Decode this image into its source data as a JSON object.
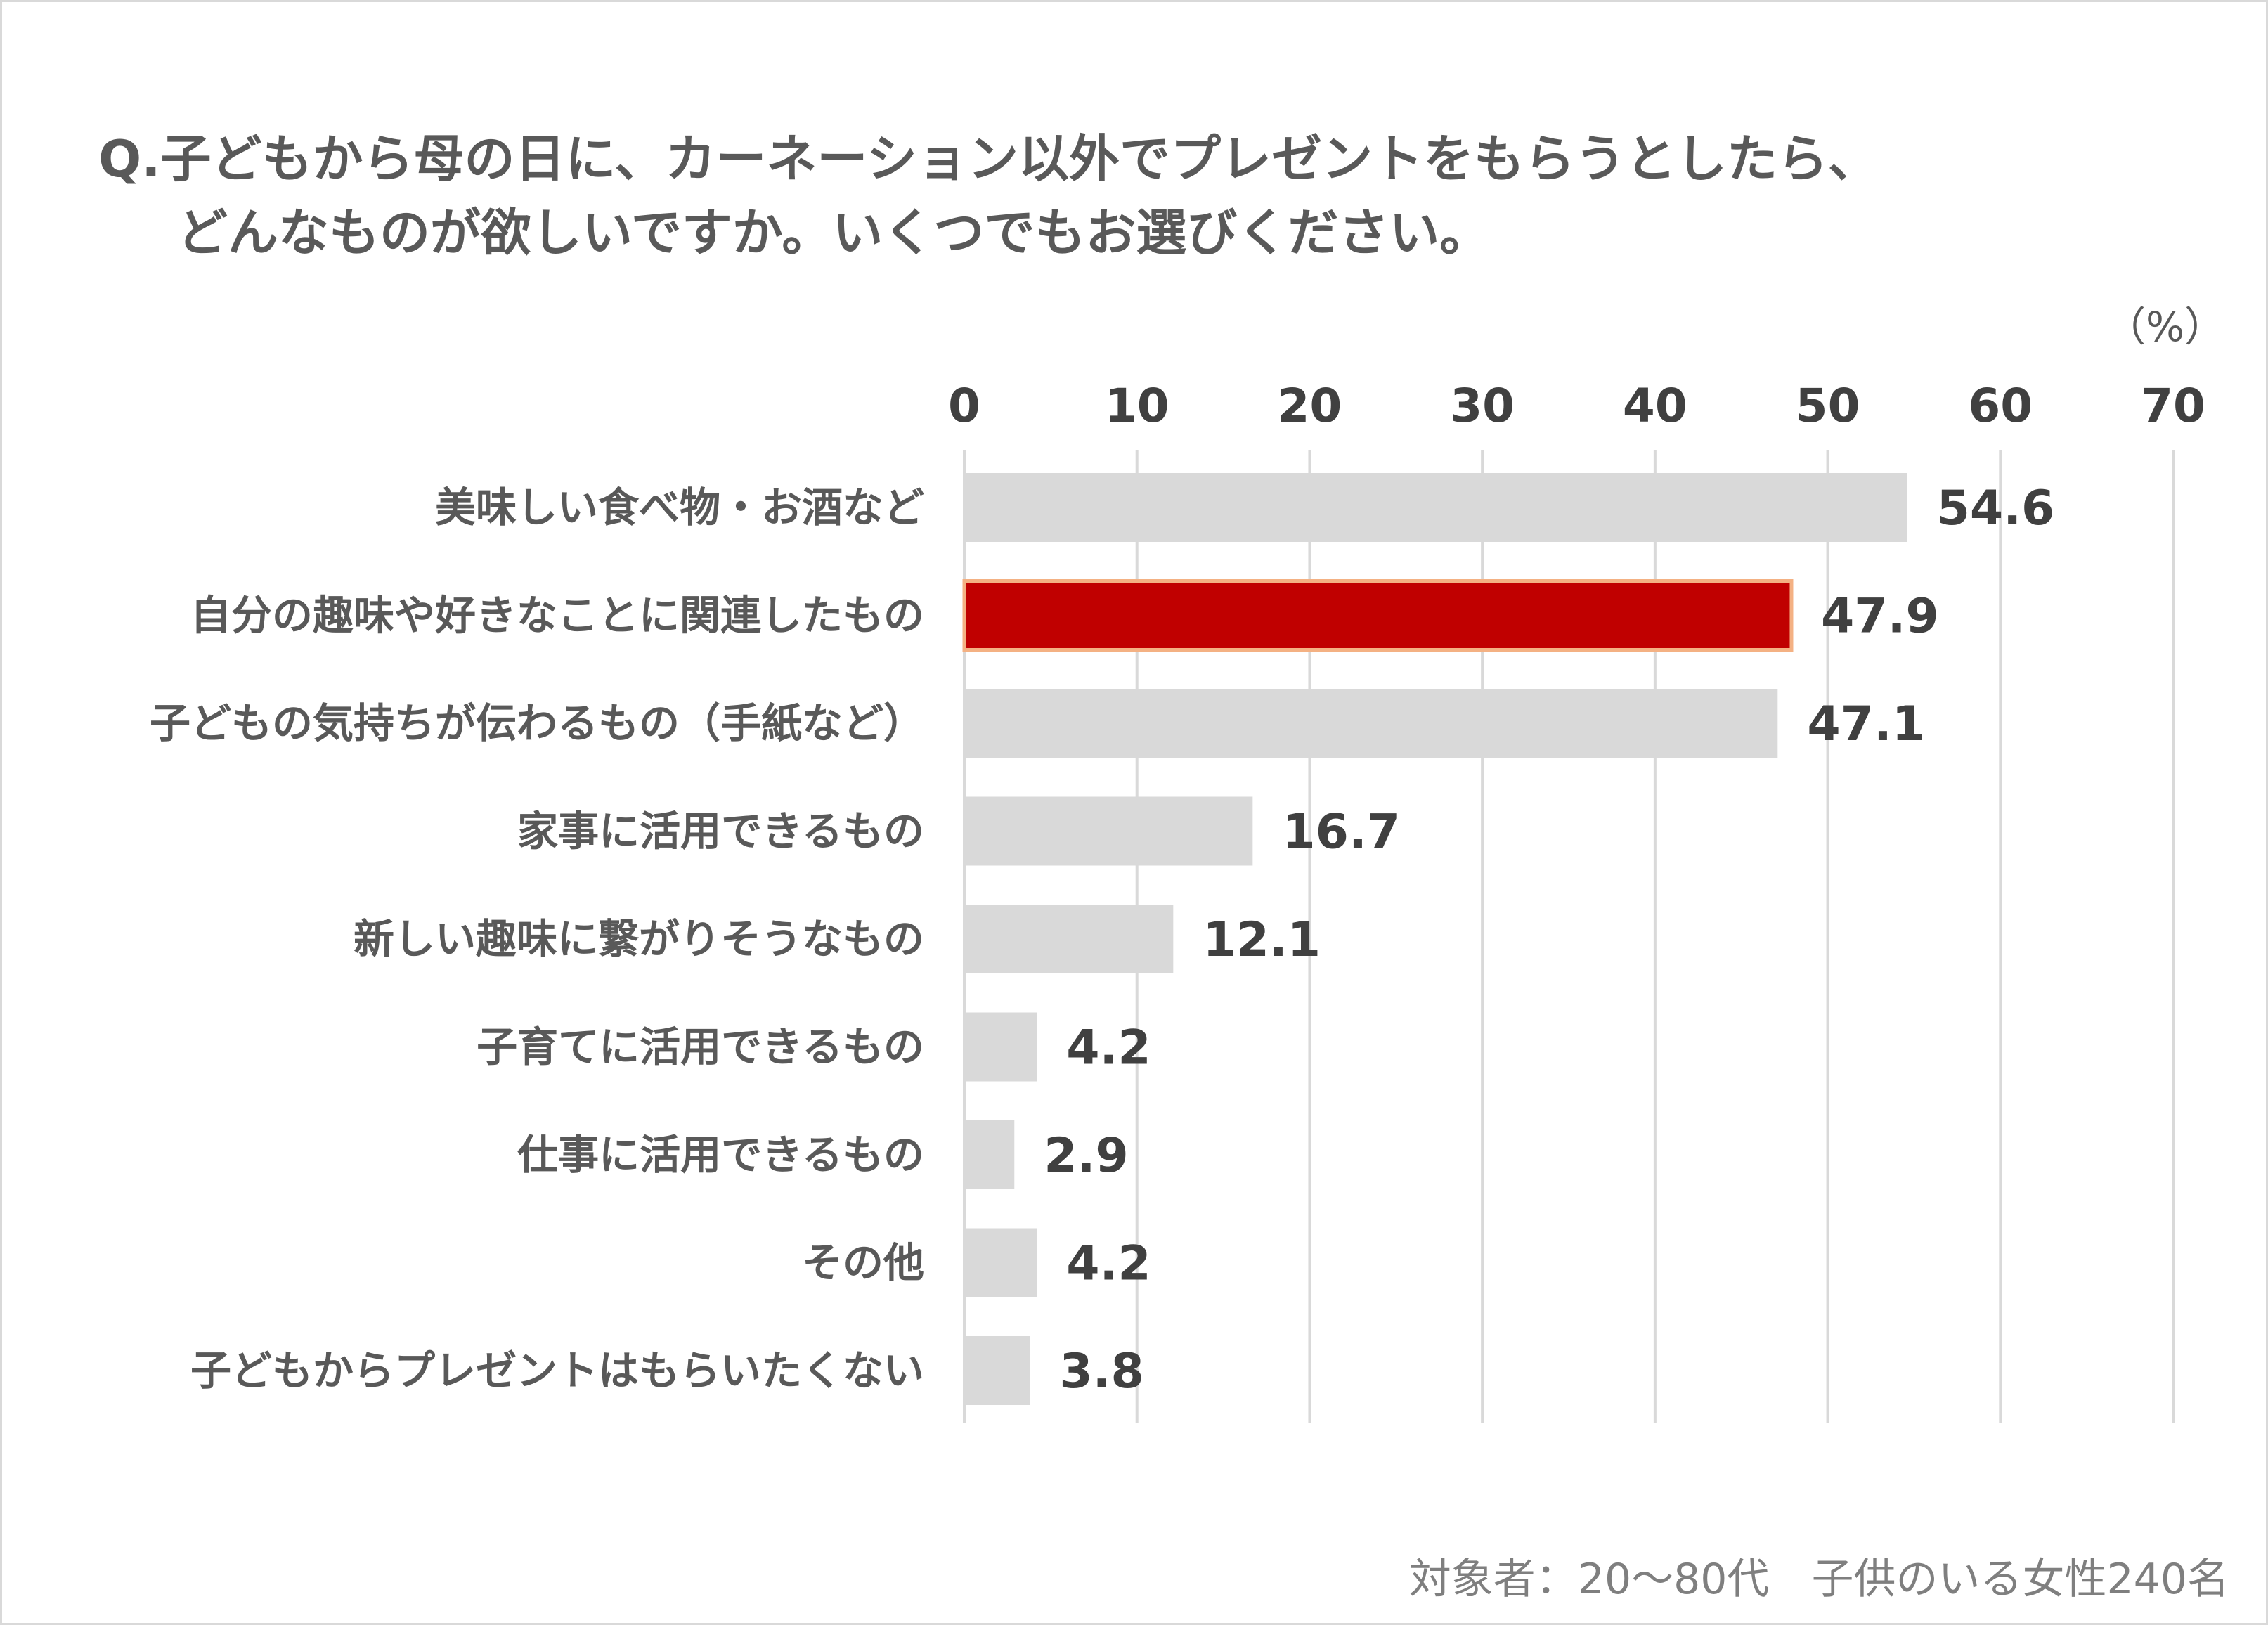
{
  "chart_data": {
    "type": "bar",
    "orientation": "horizontal",
    "title_line1": "Q.子どもから母の日に、カーネーション以外でプレゼントをもらうとしたら、",
    "title_line2": "どんなものが欲しいですか。いくつでもお選びください。",
    "unit": "（%）",
    "xlim": [
      0,
      70
    ],
    "ticks": [
      0,
      10,
      20,
      30,
      40,
      50,
      60,
      70
    ],
    "grid": true,
    "categories": [
      "美味しい食べ物・お酒など",
      "自分の趣味や好きなことに関連したもの",
      "子どもの気持ちが伝わるもの（手紙など）",
      "家事に活用できるもの",
      "新しい趣味に繋がりそうなもの",
      "子育てに活用できるもの",
      "仕事に活用できるもの",
      "その他",
      "子どもからプレゼントはもらいたくない"
    ],
    "values": [
      54.6,
      47.9,
      47.1,
      16.7,
      12.1,
      4.2,
      2.9,
      4.2,
      3.8
    ],
    "value_labels": [
      "54.6",
      "47.9",
      "47.1",
      "16.7",
      "12.1",
      "4.2",
      "2.9",
      "4.2",
      "3.8"
    ],
    "highlight_index": 1,
    "colors": {
      "bar": "#d9d9d9",
      "highlight": "#c00000",
      "highlight_border": "#f4b183",
      "highlight_text": "#c00000",
      "grid": "#d9d9d9"
    }
  },
  "footnote": "対象者：20～80代　子供のいる女性240名"
}
